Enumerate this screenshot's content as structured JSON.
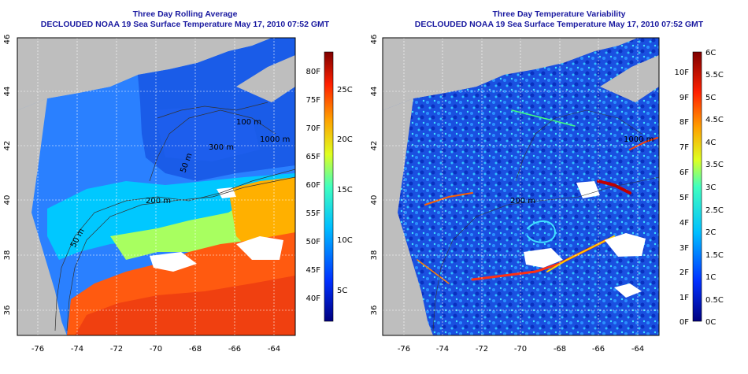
{
  "left_panel": {
    "title_line1": "Three Day Rolling Average",
    "title_line2": "DECLOUDED NOAA 19 Sea Surface Temperature May 17, 2010 07:52 GMT",
    "x_ticks": [
      "-76",
      "-74",
      "-72",
      "-70",
      "-68",
      "-66",
      "-64"
    ],
    "y_ticks": [
      "36",
      "38",
      "40",
      "42",
      "44",
      "46"
    ],
    "contour_labels": [
      "50 m",
      "200 m",
      "300 m",
      "1000 m",
      "50 m",
      "100 m"
    ],
    "colorbar": {
      "fahrenheit_labels": [
        "40F",
        "45F",
        "50F",
        "55F",
        "60F",
        "65F",
        "70F",
        "75F",
        "80F"
      ],
      "celsius_labels": [
        "5C",
        "10C",
        "15C",
        "20C",
        "25C"
      ]
    }
  },
  "right_panel": {
    "title_line1": "Three Day Temperature Variability",
    "title_line2": "DECLOUDED NOAA 19 Sea Surface Temperature May 17, 2010 07:52 GMT",
    "x_ticks": [
      "-76",
      "-74",
      "-72",
      "-70",
      "-68",
      "-66",
      "-64"
    ],
    "y_ticks": [
      "36",
      "38",
      "40",
      "42",
      "44",
      "46"
    ],
    "contour_labels": [
      "200 m",
      "1000 m"
    ],
    "colorbar": {
      "fahrenheit_labels": [
        "0F",
        "1F",
        "2F",
        "3F",
        "4F",
        "5F",
        "6F",
        "7F",
        "8F",
        "9F",
        "10F"
      ],
      "celsius_labels": [
        "0C",
        "0.5C",
        "1C",
        "1.5C",
        "2C",
        "2.5C",
        "3C",
        "3.5C",
        "4C",
        "4.5C",
        "5C",
        "5.5C",
        "6C"
      ]
    }
  },
  "colors": {
    "land": "#bebebe",
    "title": "#1a1aa0",
    "cloud": "#ffffff"
  }
}
